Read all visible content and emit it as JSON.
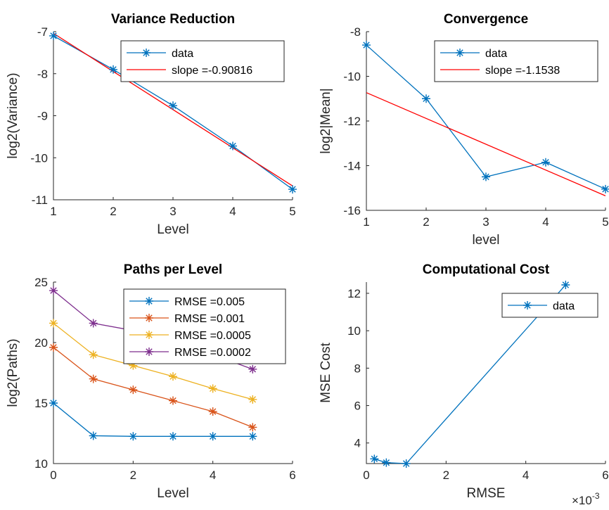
{
  "chart_data": [
    {
      "id": "variance",
      "type": "line",
      "title": "Variance Reduction",
      "xlabel": "Level",
      "ylabel": "log2(Variance)",
      "xlim": [
        1,
        5
      ],
      "ylim": [
        -11,
        -7
      ],
      "xticks": [
        1,
        2,
        3,
        4,
        5
      ],
      "yticks": [
        -7,
        -8,
        -9,
        -10,
        -11
      ],
      "legend_position": "top-right",
      "series": [
        {
          "name": "data",
          "color": "#0072BD",
          "marker": "star",
          "x": [
            1,
            2,
            3,
            4,
            5
          ],
          "y": [
            -7.1,
            -7.9,
            -8.76,
            -9.72,
            -10.75
          ]
        },
        {
          "name": "slope =-0.90816",
          "color": "#FF0000",
          "marker": "none",
          "x": [
            1,
            5
          ],
          "y": [
            -7.04,
            -10.67
          ]
        }
      ]
    },
    {
      "id": "convergence",
      "type": "line",
      "title": "Convergence",
      "xlabel": "level",
      "ylabel": "log2|Mean|",
      "xlim": [
        1,
        5
      ],
      "ylim": [
        -16,
        -8
      ],
      "xticks": [
        1,
        2,
        3,
        4,
        5
      ],
      "yticks": [
        -8,
        -10,
        -12,
        -14,
        -16
      ],
      "legend_position": "top-right",
      "series": [
        {
          "name": "data",
          "color": "#0072BD",
          "marker": "star",
          "x": [
            1,
            2,
            3,
            4,
            5
          ],
          "y": [
            -8.6,
            -11.0,
            -14.5,
            -13.85,
            -15.05
          ]
        },
        {
          "name": "slope =-1.1538",
          "color": "#FF0000",
          "marker": "none",
          "x": [
            1,
            5
          ],
          "y": [
            -10.73,
            -15.35
          ]
        }
      ]
    },
    {
      "id": "paths",
      "type": "line",
      "title": "Paths per Level",
      "xlabel": "Level",
      "ylabel": "log2(Paths)",
      "xlim": [
        0,
        6
      ],
      "ylim": [
        10,
        25
      ],
      "xticks": [
        0,
        2,
        4,
        6
      ],
      "yticks": [
        10,
        15,
        20,
        25
      ],
      "legend_position": "top-right",
      "series": [
        {
          "name": "RMSE =0.005",
          "color": "#0072BD",
          "marker": "star",
          "x": [
            0,
            1,
            2,
            3,
            4,
            5
          ],
          "y": [
            15.0,
            12.3,
            12.25,
            12.25,
            12.25,
            12.25
          ]
        },
        {
          "name": "RMSE =0.001",
          "color": "#D95319",
          "marker": "star",
          "x": [
            0,
            1,
            2,
            3,
            4,
            5
          ],
          "y": [
            19.6,
            17.0,
            16.1,
            15.2,
            14.3,
            13.0
          ]
        },
        {
          "name": "RMSE =0.0005",
          "color": "#EDB120",
          "marker": "star",
          "x": [
            0,
            1,
            2,
            3,
            4,
            5
          ],
          "y": [
            21.6,
            19.0,
            18.1,
            17.2,
            16.2,
            15.3
          ]
        },
        {
          "name": "RMSE =0.0002",
          "color": "#7E2F8E",
          "marker": "star",
          "x": [
            0,
            1,
            2,
            3,
            4,
            5
          ],
          "y": [
            24.3,
            21.6,
            21.0,
            19.9,
            19.0,
            17.8
          ]
        }
      ]
    },
    {
      "id": "cost",
      "type": "line",
      "title": "Computational Cost",
      "xlabel": "RMSE",
      "ylabel": "MSE Cost",
      "xlim": [
        0,
        6
      ],
      "ylim": [
        2.9,
        12.6
      ],
      "xticks": [
        0,
        2,
        4,
        6
      ],
      "yticks": [
        4,
        6,
        8,
        10,
        12
      ],
      "x_exponent": "×10",
      "x_exponent_power": "-3",
      "legend_position": "top-right",
      "series": [
        {
          "name": "data",
          "color": "#0072BD",
          "marker": "star",
          "x": [
            0.2,
            0.5,
            1.0,
            5.0
          ],
          "y": [
            3.15,
            2.95,
            2.9,
            12.45
          ]
        }
      ]
    }
  ]
}
